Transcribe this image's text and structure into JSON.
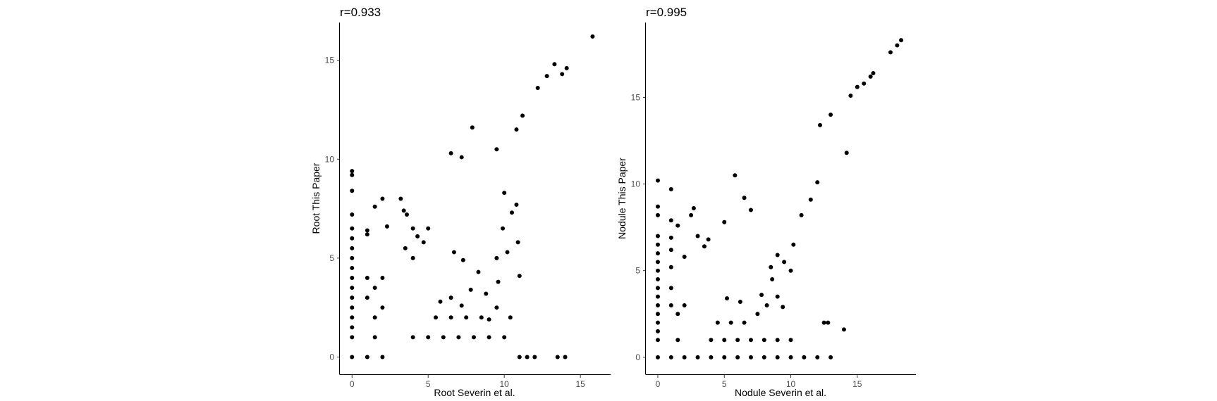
{
  "colors": {
    "point": "#000000",
    "axis": "#000000",
    "tick_text": "#4d4d4d",
    "background": "#ffffff"
  },
  "chart_data": [
    {
      "type": "scatter",
      "title": "r=0.933",
      "xlabel": "Root Severin et al.",
      "ylabel": "Root This Paper",
      "xlim": [
        -0.8,
        16.8
      ],
      "ylim": [
        -0.8,
        16.8
      ],
      "xticks": [
        0,
        5,
        10,
        15
      ],
      "yticks": [
        0,
        5,
        10,
        15
      ],
      "grid": false,
      "legend": "none",
      "series": [
        {
          "points": [
            [
              0,
              0
            ],
            [
              0,
              1
            ],
            [
              0,
              1.5
            ],
            [
              0,
              2
            ],
            [
              0,
              2.5
            ],
            [
              0,
              3
            ],
            [
              0,
              3.5
            ],
            [
              0,
              4
            ],
            [
              0,
              4.5
            ],
            [
              0,
              5
            ],
            [
              0,
              5.5
            ],
            [
              0,
              6
            ],
            [
              0,
              6.5
            ],
            [
              0,
              7.2
            ],
            [
              0,
              8.4
            ],
            [
              0,
              9.2
            ],
            [
              0,
              9.4
            ],
            [
              1,
              0
            ],
            [
              1,
              3
            ],
            [
              1,
              4
            ],
            [
              1,
              6.2
            ],
            [
              1,
              6.4
            ],
            [
              1.5,
              1
            ],
            [
              1.5,
              2
            ],
            [
              1.5,
              3.5
            ],
            [
              1.5,
              7.6
            ],
            [
              2,
              0
            ],
            [
              2,
              2.5
            ],
            [
              2,
              4
            ],
            [
              2,
              8
            ],
            [
              2.3,
              6.6
            ],
            [
              3.2,
              8
            ],
            [
              3.4,
              7.4
            ],
            [
              3.6,
              7.2
            ],
            [
              4,
              6.5
            ],
            [
              4.3,
              6.1
            ],
            [
              4.7,
              5.8
            ],
            [
              3.5,
              5.5
            ],
            [
              4,
              5
            ],
            [
              5,
              6.5
            ],
            [
              6.5,
              10.3
            ],
            [
              7.2,
              10.1
            ],
            [
              7.9,
              11.6
            ],
            [
              9.5,
              10.5
            ],
            [
              10.8,
              11.5
            ],
            [
              11.2,
              12.2
            ],
            [
              12.2,
              13.6
            ],
            [
              12.8,
              14.2
            ],
            [
              13.3,
              14.8
            ],
            [
              13.8,
              14.3
            ],
            [
              14.1,
              14.6
            ],
            [
              15.8,
              16.2
            ],
            [
              10,
              8.3
            ],
            [
              9.5,
              5
            ],
            [
              9.9,
              6.5
            ],
            [
              10.2,
              5.3
            ],
            [
              10.9,
              5.8
            ],
            [
              11,
              4.1
            ],
            [
              10.5,
              7.3
            ],
            [
              10.8,
              7.7
            ],
            [
              9,
              1.9
            ],
            [
              10.4,
              2
            ],
            [
              10,
              1
            ],
            [
              4,
              1
            ],
            [
              5,
              1
            ],
            [
              6,
              1
            ],
            [
              7,
              1
            ],
            [
              8,
              1
            ],
            [
              9,
              1
            ],
            [
              5.5,
              2
            ],
            [
              6.5,
              2
            ],
            [
              7.5,
              2
            ],
            [
              8.5,
              2
            ],
            [
              9.5,
              2.5
            ],
            [
              8.8,
              3.2
            ],
            [
              9.6,
              3.8
            ],
            [
              12,
              0
            ],
            [
              13.5,
              0
            ],
            [
              14,
              0
            ],
            [
              11.5,
              0
            ],
            [
              11,
              0
            ],
            [
              7.8,
              3.4
            ],
            [
              6.5,
              3
            ],
            [
              5.8,
              2.8
            ],
            [
              7.2,
              2.6
            ],
            [
              8.3,
              4.3
            ],
            [
              7.3,
              4.9
            ],
            [
              6.7,
              5.3
            ]
          ]
        }
      ]
    },
    {
      "type": "scatter",
      "title": "r=0.995",
      "xlabel": "Nodule Severin et al.",
      "ylabel": "Nodule This Paper",
      "xlim": [
        -0.9,
        19.2
      ],
      "ylim": [
        -0.9,
        19.2
      ],
      "xticks": [
        0,
        5,
        10,
        15
      ],
      "yticks": [
        0,
        5,
        10,
        15
      ],
      "grid": false,
      "legend": "none",
      "series": [
        {
          "points": [
            [
              0,
              0
            ],
            [
              0,
              1
            ],
            [
              0,
              1.5
            ],
            [
              0,
              2
            ],
            [
              0,
              2.5
            ],
            [
              0,
              3
            ],
            [
              0,
              3.5
            ],
            [
              0,
              4
            ],
            [
              0,
              4.5
            ],
            [
              0,
              5
            ],
            [
              0,
              5.5
            ],
            [
              0,
              6
            ],
            [
              0,
              6.5
            ],
            [
              0,
              7
            ],
            [
              0,
              8.2
            ],
            [
              0,
              8.7
            ],
            [
              0,
              10.2
            ],
            [
              1,
              0
            ],
            [
              1,
              3
            ],
            [
              1,
              4
            ],
            [
              1,
              5.2
            ],
            [
              1,
              6.2
            ],
            [
              1,
              6.9
            ],
            [
              1,
              7.9
            ],
            [
              1,
              9.7
            ],
            [
              1.5,
              1
            ],
            [
              1.5,
              2.5
            ],
            [
              1.5,
              7.6
            ],
            [
              2,
              0
            ],
            [
              2,
              3
            ],
            [
              2.5,
              8.2
            ],
            [
              2.7,
              8.6
            ],
            [
              3,
              7
            ],
            [
              2,
              5.8
            ],
            [
              3.5,
              6.4
            ],
            [
              3.8,
              6.8
            ],
            [
              5,
              7.8
            ],
            [
              5.8,
              10.5
            ],
            [
              6.5,
              9.2
            ],
            [
              7,
              8.5
            ],
            [
              14.2,
              11.8
            ],
            [
              12.2,
              13.4
            ],
            [
              13,
              14
            ],
            [
              14.5,
              15.1
            ],
            [
              15,
              15.6
            ],
            [
              15.5,
              15.8
            ],
            [
              16,
              16.2
            ],
            [
              16.2,
              16.4
            ],
            [
              17.5,
              17.6
            ],
            [
              18,
              18
            ],
            [
              18.3,
              18.3
            ],
            [
              9.5,
              5.5
            ],
            [
              10,
              5
            ],
            [
              10.2,
              6.5
            ],
            [
              10.8,
              8.2
            ],
            [
              11.5,
              9.1
            ],
            [
              12,
              10.1
            ],
            [
              9,
              3.5
            ],
            [
              9.4,
              2.9
            ],
            [
              8.6,
              4.5
            ],
            [
              10,
              1
            ],
            [
              12.5,
              2
            ],
            [
              12.8,
              2
            ],
            [
              14,
              1.6
            ],
            [
              3,
              0
            ],
            [
              4,
              0
            ],
            [
              5,
              0
            ],
            [
              6,
              0
            ],
            [
              7,
              0
            ],
            [
              8,
              0
            ],
            [
              9,
              0
            ],
            [
              10,
              0
            ],
            [
              11,
              0
            ],
            [
              12,
              0
            ],
            [
              13,
              0
            ],
            [
              4,
              1
            ],
            [
              5,
              1
            ],
            [
              6,
              1
            ],
            [
              7,
              1
            ],
            [
              8,
              1
            ],
            [
              9,
              1
            ],
            [
              4.5,
              2
            ],
            [
              5.5,
              2
            ],
            [
              6.5,
              2
            ],
            [
              7.5,
              2.5
            ],
            [
              8.2,
              3
            ],
            [
              7.8,
              3.6
            ],
            [
              8.5,
              5.2
            ],
            [
              9,
              5.9
            ],
            [
              6.2,
              3.2
            ],
            [
              5.2,
              3.4
            ]
          ]
        }
      ]
    }
  ]
}
